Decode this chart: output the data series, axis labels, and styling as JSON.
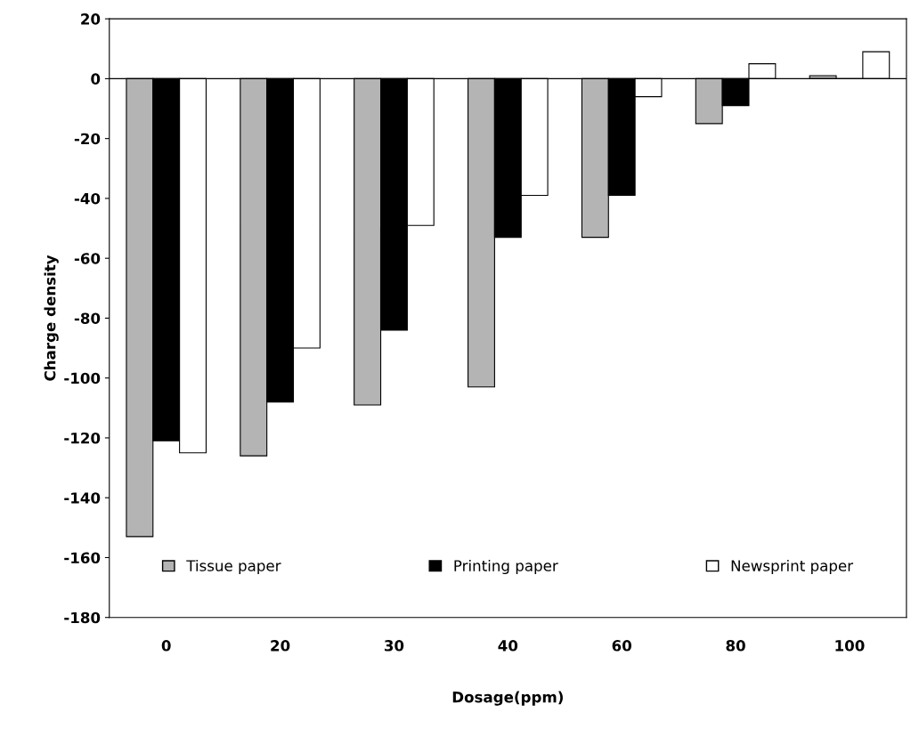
{
  "chart_data": {
    "type": "bar",
    "xlabel": "Dosage(ppm)",
    "ylabel": "Charge density",
    "categories": [
      "0",
      "20",
      "30",
      "40",
      "60",
      "80",
      "100"
    ],
    "series": [
      {
        "name": "Tissue paper",
        "color": "#b4b4b4",
        "values": [
          -153,
          -126,
          -109,
          -103,
          -53,
          -15,
          1
        ]
      },
      {
        "name": "Printing paper",
        "color": "#000000",
        "values": [
          -121,
          -108,
          -84,
          -53,
          -39,
          -9,
          0
        ]
      },
      {
        "name": "Newsprint paper",
        "color": "#ffffff",
        "values": [
          -125,
          -90,
          -49,
          -39,
          -6,
          5,
          9
        ]
      }
    ],
    "ylim": [
      -180,
      20
    ],
    "yticks": [
      -180,
      -160,
      -140,
      -120,
      -100,
      -80,
      -60,
      -40,
      -20,
      0,
      20
    ],
    "ref_lines": [
      {
        "axis": "y",
        "value": 0,
        "color": "#000000"
      }
    ],
    "grid": false,
    "legend": "bottom"
  }
}
